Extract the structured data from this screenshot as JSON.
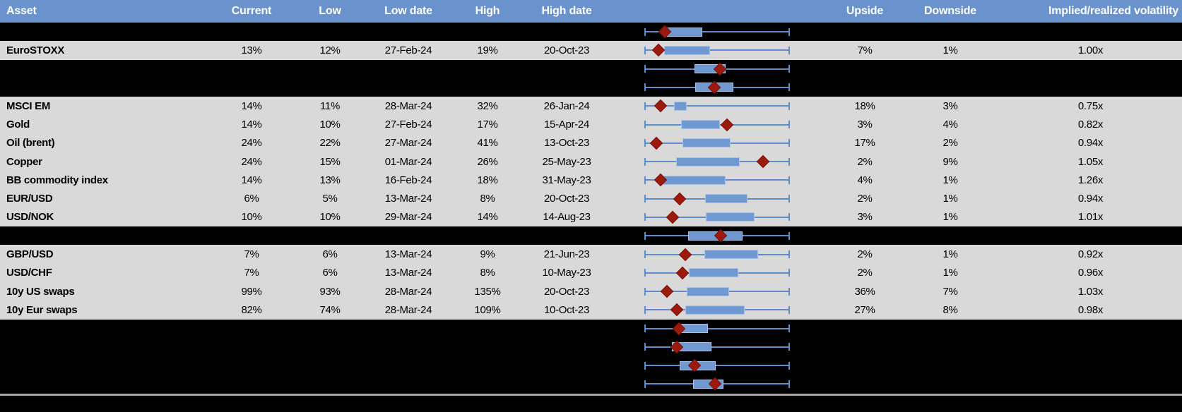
{
  "colors": {
    "header_bg": "#6a93cd",
    "header_text": "#ffffff",
    "row_gray": "#d9d9d9",
    "row_black": "#000000",
    "whisker_blue": "#5e8dc9",
    "box_fill_blue": "#6f99d0",
    "box_border_blue": "#a9c2e6",
    "diamond_red": "#9c1a0c",
    "divider_gray": "#a6a6a6"
  },
  "header": {
    "columns": [
      {
        "key": "asset",
        "label": "Asset"
      },
      {
        "key": "current",
        "label": "Current"
      },
      {
        "key": "low",
        "label": "Low"
      },
      {
        "key": "low_date",
        "label": "Low date"
      },
      {
        "key": "high",
        "label": "High"
      },
      {
        "key": "high_date",
        "label": "High date"
      },
      {
        "key": "range_chart",
        "label": ""
      },
      {
        "key": "upside",
        "label": "Upside"
      },
      {
        "key": "downside",
        "label": "Downside"
      },
      {
        "key": "impl_real_vol",
        "label": "Implied/realized volatility"
      }
    ]
  },
  "rows": [
    {
      "type": "black",
      "plot": {
        "diamond_pct": 14.0,
        "box_pct": [
          15.0,
          40.0
        ]
      }
    },
    {
      "type": "gray",
      "asset": "EuroSTOXX",
      "current": "13%",
      "low": "12%",
      "low_date": "27-Feb-24",
      "high": "19%",
      "high_date": "20-Oct-23",
      "upside": "7%",
      "downside": "1%",
      "impl_real_vol": "1.00x",
      "plot": {
        "diamond_pct": 9.8,
        "box_pct": [
          13.4,
          45.2
        ]
      }
    },
    {
      "type": "black",
      "plot": {
        "diamond_pct": 52.0,
        "box_pct": [
          34.6,
          56.0
        ]
      }
    },
    {
      "type": "black",
      "plot": {
        "diamond_pct": 48.0,
        "box_pct": [
          35.0,
          61.0
        ]
      }
    },
    {
      "type": "gray",
      "asset": "MSCI EM",
      "current": "14%",
      "low": "11%",
      "low_date": "28-Mar-24",
      "high": "32%",
      "high_date": "26-Jan-24",
      "upside": "18%",
      "downside": "3%",
      "impl_real_vol": "0.75x",
      "plot": {
        "diamond_pct": 11.3,
        "box_pct": [
          20.5,
          29.3
        ]
      }
    },
    {
      "type": "gray",
      "asset": "Gold",
      "current": "14%",
      "low": "10%",
      "low_date": "27-Feb-24",
      "high": "17%",
      "high_date": "15-Apr-24",
      "upside": "3%",
      "downside": "4%",
      "impl_real_vol": "0.82x",
      "plot": {
        "diamond_pct": 56.8,
        "box_pct": [
          25.0,
          52.0
        ]
      }
    },
    {
      "type": "gray",
      "asset": "Oil (brent)",
      "current": "24%",
      "low": "22%",
      "low_date": "27-Mar-24",
      "high": "41%",
      "high_date": "13-Oct-23",
      "upside": "17%",
      "downside": "2%",
      "impl_real_vol": "0.94x",
      "plot": {
        "diamond_pct": 8.2,
        "box_pct": [
          26.1,
          59.4
        ]
      }
    },
    {
      "type": "gray",
      "asset": "Copper",
      "current": "24%",
      "low": "15%",
      "low_date": "01-Mar-24",
      "high": "26%",
      "high_date": "25-May-23",
      "upside": "2%",
      "downside": "9%",
      "impl_real_vol": "1.05x",
      "plot": {
        "diamond_pct": 81.4,
        "box_pct": [
          21.8,
          65.3
        ]
      }
    },
    {
      "type": "gray",
      "asset": "BB commodity index",
      "current": "14%",
      "low": "13%",
      "low_date": "16-Feb-24",
      "high": "18%",
      "high_date": "31-May-23",
      "upside": "4%",
      "downside": "1%",
      "impl_real_vol": "1.26x",
      "plot": {
        "diamond_pct": 11.0,
        "box_pct": [
          12.3,
          55.6
        ]
      }
    },
    {
      "type": "gray",
      "asset": "EUR/USD",
      "current": "6%",
      "low": "5%",
      "low_date": "13-Mar-24",
      "high": "8%",
      "high_date": "20-Oct-23",
      "upside": "2%",
      "downside": "1%",
      "impl_real_vol": "0.94x",
      "plot": {
        "diamond_pct": 24.3,
        "box_pct": [
          41.8,
          70.9
        ]
      }
    },
    {
      "type": "gray",
      "asset": "USD/NOK",
      "current": "10%",
      "low": "10%",
      "low_date": "29-Mar-24",
      "high": "14%",
      "high_date": "14-Aug-23",
      "upside": "3%",
      "downside": "1%",
      "impl_real_vol": "1.01x",
      "plot": {
        "diamond_pct": 19.5,
        "box_pct": [
          42.2,
          75.6
        ]
      }
    },
    {
      "type": "black",
      "plot": {
        "diamond_pct": 52.5,
        "box_pct": [
          30.0,
          67.3
        ]
      }
    },
    {
      "type": "gray",
      "asset": "GBP/USD",
      "current": "7%",
      "low": "6%",
      "low_date": "13-Mar-24",
      "high": "9%",
      "high_date": "21-Jun-23",
      "upside": "2%",
      "downside": "1%",
      "impl_real_vol": "0.92x",
      "plot": {
        "diamond_pct": 28.1,
        "box_pct": [
          41.5,
          78.1
        ]
      }
    },
    {
      "type": "gray",
      "asset": "USD/CHF",
      "current": "7%",
      "low": "6%",
      "low_date": "13-Mar-24",
      "high": "8%",
      "high_date": "10-May-23",
      "upside": "2%",
      "downside": "1%",
      "impl_real_vol": "0.96x",
      "plot": {
        "diamond_pct": 26.1,
        "box_pct": [
          30.7,
          64.5
        ]
      }
    },
    {
      "type": "gray",
      "asset": "10y US swaps",
      "current": "99%",
      "low": "93%",
      "low_date": "28-Mar-24",
      "high": "135%",
      "high_date": "20-Oct-23",
      "upside": "36%",
      "downside": "7%",
      "impl_real_vol": "1.03x",
      "plot": {
        "diamond_pct": 15.4,
        "box_pct": [
          28.9,
          58.4
        ]
      }
    },
    {
      "type": "gray",
      "asset": "10y Eur swaps",
      "current": "82%",
      "low": "74%",
      "low_date": "28-Mar-24",
      "high": "109%",
      "high_date": "10-Oct-23",
      "upside": "27%",
      "downside": "8%",
      "impl_real_vol": "0.98x",
      "plot": {
        "diamond_pct": 22.2,
        "box_pct": [
          28.1,
          69.1
        ]
      }
    },
    {
      "type": "black",
      "plot": {
        "diamond_pct": 23.8,
        "box_pct": [
          24.3,
          43.5
        ]
      }
    },
    {
      "type": "black",
      "plot": {
        "diamond_pct": 22.2,
        "box_pct": [
          18.7,
          46.1
        ]
      }
    },
    {
      "type": "black",
      "plot": {
        "diamond_pct": 34.6,
        "box_pct": [
          24.3,
          49.2
        ]
      }
    },
    {
      "type": "black",
      "plot": {
        "diamond_pct": 48.6,
        "box_pct": [
          33.3,
          54.5
        ]
      }
    },
    {
      "type": "divider"
    }
  ],
  "chart_data": {
    "type": "table",
    "title": "Asset implied volatility ranges: current vs low/high with box-whisker range charts",
    "columns": [
      "Asset",
      "Current",
      "Low",
      "Low date",
      "High",
      "High date",
      "Range chart",
      "Upside",
      "Downside",
      "Implied/realized volatility"
    ],
    "rows_data": [
      [
        "EuroSTOXX",
        "13%",
        "12%",
        "27-Feb-24",
        "19%",
        "20-Oct-23",
        "7%",
        "1%",
        "1.00x"
      ],
      [
        "MSCI EM",
        "14%",
        "11%",
        "28-Mar-24",
        "32%",
        "26-Jan-24",
        "18%",
        "3%",
        "0.75x"
      ],
      [
        "Gold",
        "14%",
        "10%",
        "27-Feb-24",
        "17%",
        "15-Apr-24",
        "3%",
        "4%",
        "0.82x"
      ],
      [
        "Oil (brent)",
        "24%",
        "22%",
        "27-Mar-24",
        "41%",
        "13-Oct-23",
        "17%",
        "2%",
        "0.94x"
      ],
      [
        "Copper",
        "24%",
        "15%",
        "01-Mar-24",
        "26%",
        "25-May-23",
        "2%",
        "9%",
        "1.05x"
      ],
      [
        "BB commodity index",
        "14%",
        "13%",
        "16-Feb-24",
        "18%",
        "31-May-23",
        "4%",
        "1%",
        "1.26x"
      ],
      [
        "EUR/USD",
        "6%",
        "5%",
        "13-Mar-24",
        "8%",
        "20-Oct-23",
        "2%",
        "1%",
        "0.94x"
      ],
      [
        "USD/NOK",
        "10%",
        "10%",
        "29-Mar-24",
        "14%",
        "14-Aug-23",
        "3%",
        "1%",
        "1.01x"
      ],
      [
        "GBP/USD",
        "7%",
        "6%",
        "13-Mar-24",
        "9%",
        "21-Jun-23",
        "2%",
        "1%",
        "0.92x"
      ],
      [
        "USD/CHF",
        "7%",
        "6%",
        "13-Mar-24",
        "8%",
        "10-May-23",
        "2%",
        "1%",
        "0.96x"
      ],
      [
        "10y US swaps",
        "99%",
        "93%",
        "28-Mar-24",
        "135%",
        "20-Oct-23",
        "36%",
        "7%",
        "1.03x"
      ],
      [
        "10y Eur swaps",
        "82%",
        "74%",
        "28-Mar-24",
        "109%",
        "10-Oct-23",
        "27%",
        "8%",
        "0.98x"
      ]
    ],
    "boxplots_note": "Each table row (plus unlabeled black filler rows) shows a horizontal box-whisker mini chart; whiskers span the full track (0-100), box span and current-value diamond given as percent of track in rows[].plot",
    "boxplot_marker": "red diamond = current level",
    "legend_position": "none",
    "grid": false
  }
}
